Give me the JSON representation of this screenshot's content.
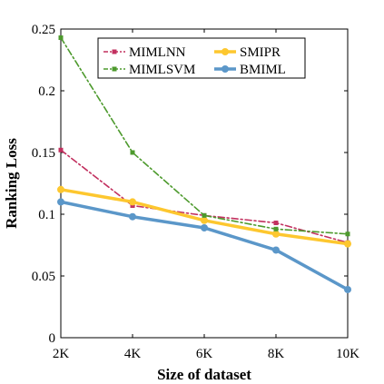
{
  "chart_data": {
    "type": "line",
    "title": "",
    "xlabel": "Size of dataset",
    "ylabel": "Ranking Loss",
    "categories": [
      "2K",
      "4K",
      "6K",
      "8K",
      "10K"
    ],
    "ylim": [
      0,
      0.25
    ],
    "yticks": [
      0,
      0.05,
      0.1,
      0.15,
      0.2,
      0.25
    ],
    "ytick_labels": [
      "0",
      "0.05",
      "0.1",
      "0.15",
      "0.2",
      "0.25"
    ],
    "grid": false,
    "legend_position": "top",
    "series": [
      {
        "name": "MIMLNN",
        "values": [
          0.152,
          0.107,
          0.099,
          0.093,
          0.077
        ],
        "color": "#c2305f",
        "style": "dash-dot",
        "marker": "square",
        "width": "thin"
      },
      {
        "name": "SMIPR",
        "values": [
          0.12,
          0.11,
          0.095,
          0.084,
          0.076
        ],
        "color": "#fdc72f",
        "style": "solid",
        "marker": "circle",
        "width": "thick"
      },
      {
        "name": "MIMLSVM",
        "values": [
          0.243,
          0.15,
          0.099,
          0.088,
          0.084
        ],
        "color": "#4d9a2d",
        "style": "dash-dot",
        "marker": "square",
        "width": "thin"
      },
      {
        "name": "BMIML",
        "values": [
          0.11,
          0.098,
          0.089,
          0.071,
          0.039
        ],
        "color": "#5b97c9",
        "style": "solid",
        "marker": "circle",
        "width": "thick"
      }
    ]
  }
}
